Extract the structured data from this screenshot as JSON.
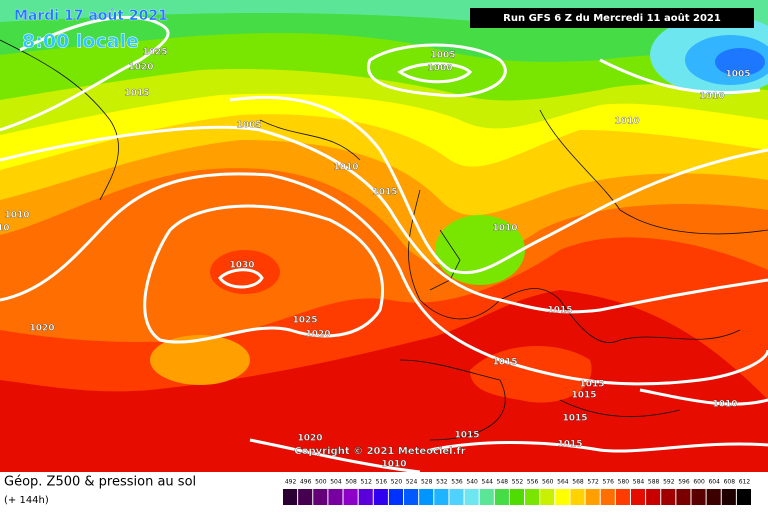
{
  "header": {
    "date": "Mardi 17 août 2021",
    "time": "8:00 locale",
    "run": "Run GFS 6 Z du Mercredi 11 août 2021"
  },
  "isobar_labels": [
    "1025",
    "1020",
    "1015",
    "1005",
    "1000",
    "1005",
    "1010",
    "1010",
    "1005",
    "1010",
    "1015",
    "1010",
    "1010",
    "1010",
    "1030",
    "1025",
    "1020",
    "1020",
    "1015",
    "1015",
    "1015",
    "1015",
    "1015",
    "1015",
    "1015",
    "1010",
    "1020",
    "1010"
  ],
  "copyright": "Copyright © 2021 Meteociel.fr",
  "footer": {
    "title": "Géop. Z500 & pression au sol",
    "lead": "(+ 144h)"
  },
  "color_scale": {
    "labels": [
      492,
      496,
      500,
      504,
      508,
      512,
      516,
      520,
      524,
      528,
      532,
      536,
      540,
      544,
      548,
      552,
      556,
      560,
      564,
      568,
      572,
      576,
      580,
      584,
      588,
      592,
      596,
      600,
      604,
      608,
      612
    ]
  }
}
